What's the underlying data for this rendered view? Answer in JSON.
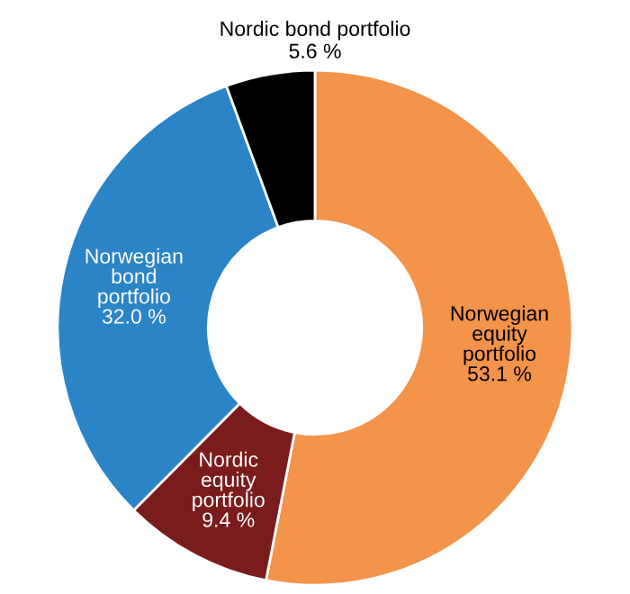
{
  "chart_data": {
    "type": "donut",
    "categories": [
      "Norwegian\nequity\nportfolio",
      "Nordic\nequity\nportfolio",
      "Norwegian\nbond\nportfolio",
      "Nordic bond portfolio"
    ],
    "values": [
      53.1,
      9.4,
      32.0,
      5.6
    ],
    "value_labels": [
      "53.1 %",
      "9.4 %",
      "32.0 %",
      "5.6 %"
    ],
    "colors": [
      "#f4934a",
      "#7a1c1c",
      "#2b84c6",
      "#000000"
    ],
    "legend": false
  }
}
